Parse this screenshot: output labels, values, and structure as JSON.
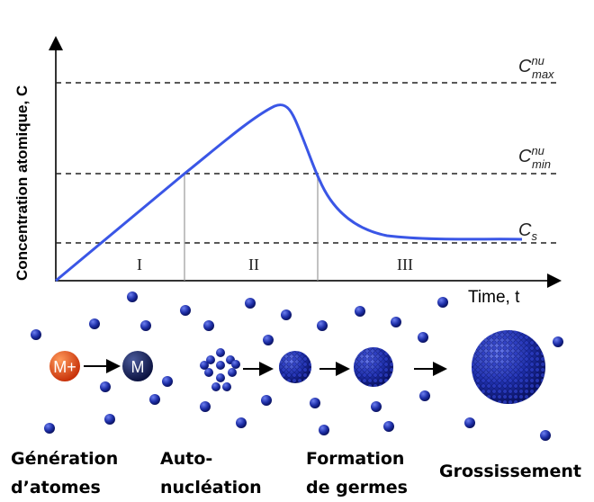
{
  "diagram": {
    "y_axis_label": "Concentration atomique, C",
    "x_axis_label": "Time, t",
    "levels": [
      {
        "symbol": "C",
        "sup": "nu",
        "sub": "max"
      },
      {
        "symbol": "C",
        "sup": "nu",
        "sub": "min"
      },
      {
        "symbol": "C",
        "sub": "s"
      }
    ],
    "stages": [
      "I",
      "II",
      "III"
    ],
    "ions": [
      "M+",
      "M"
    ],
    "captions": [
      [
        "Génération",
        "d’atomes"
      ],
      [
        "Auto-",
        "nucléation"
      ],
      [
        "Formation",
        "de germes"
      ],
      [
        "Grossissement"
      ]
    ]
  }
}
